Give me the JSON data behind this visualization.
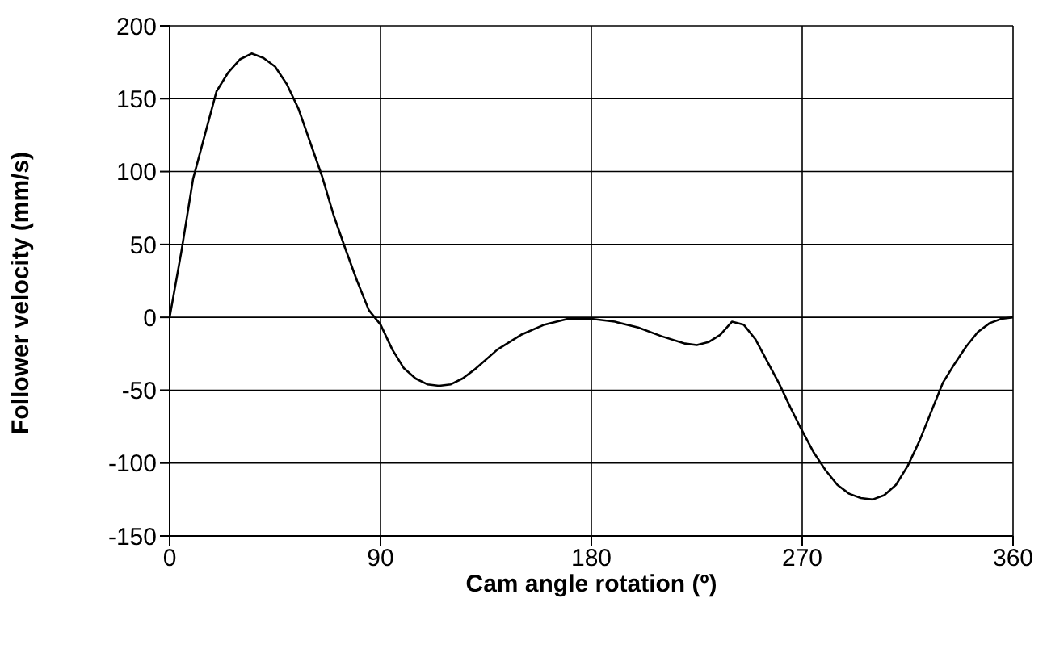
{
  "chart_data": {
    "type": "line",
    "xlabel": "Cam angle rotation (º)",
    "ylabel": "Follower velocity (mm/s)",
    "x": [
      0,
      5,
      10,
      15,
      20,
      25,
      30,
      35,
      40,
      45,
      50,
      55,
      60,
      65,
      70,
      75,
      80,
      85,
      90,
      95,
      100,
      105,
      110,
      115,
      120,
      125,
      130,
      140,
      150,
      160,
      170,
      180,
      190,
      200,
      210,
      220,
      225,
      230,
      235,
      240,
      245,
      250,
      255,
      260,
      265,
      270,
      275,
      280,
      285,
      290,
      295,
      300,
      305,
      310,
      315,
      320,
      325,
      330,
      335,
      340,
      345,
      350,
      355,
      360
    ],
    "series": [
      {
        "color": "#000000",
        "values": [
          0,
          45,
          95,
          125,
          155,
          168,
          177,
          181,
          178,
          172,
          160,
          143,
          120,
          97,
          70,
          47,
          25,
          5,
          -5,
          -22,
          -35,
          -42,
          -46,
          -47,
          -46,
          -42,
          -36,
          -22,
          -12,
          -5,
          -1,
          -1,
          -3,
          -7,
          -13,
          -18,
          -19,
          -17,
          -12,
          -3,
          -5,
          -15,
          -30,
          -45,
          -62,
          -78,
          -93,
          -105,
          -115,
          -121,
          -124,
          -125,
          -122,
          -115,
          -102,
          -85,
          -65,
          -45,
          -32,
          -20,
          -10,
          -4,
          -1,
          0
        ]
      }
    ],
    "xlim": [
      0,
      360
    ],
    "xticks": [
      0,
      90,
      180,
      270,
      360
    ],
    "ylim": [
      -150,
      200
    ],
    "yticks": [
      -150,
      -100,
      -50,
      0,
      50,
      100,
      150,
      200
    ],
    "grid": true,
    "marker": "none",
    "line_style": "solid"
  }
}
